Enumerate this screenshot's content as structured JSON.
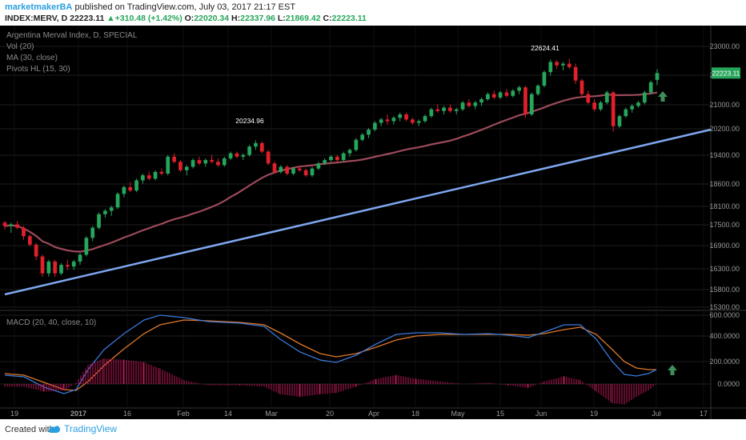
{
  "header": {
    "author": "marketmakerBA",
    "published": "published on TradingView.com, July 03, 2017 21:17 EST",
    "symbol": "INDEX:MERV, D",
    "last": "22223.11",
    "change_arrow": "▲",
    "change": "+310.48 (+1.42%)",
    "open_label": "O:",
    "open": "22020.34",
    "high_label": "H:",
    "high": "22337.96",
    "low_label": "L:",
    "low": "21869.42",
    "close_label": "C:",
    "close": "22223.11"
  },
  "legend": {
    "title": "Argentina Merval Index, D, SPECIAL",
    "vol": "Vol (20)",
    "ma": "MA (30, close)",
    "pivots": "Pivots HL (15, 30)",
    "macd": "MACD (20, 40, close, 10)"
  },
  "footer": {
    "created": "Created with",
    "brand": "TradingView"
  },
  "colors": {
    "background": "#000000",
    "up": "#26a65b",
    "down": "#e0202a",
    "ma": "#9c4a5a",
    "trendline": "#7ea7f0",
    "macd": "#3a78d8",
    "signal": "#e0782a",
    "histogram": "#c0185a",
    "arrow": "#3f8f5a",
    "grid": "#1e1e1e"
  },
  "chart_data": [
    {
      "type": "candlestick",
      "title": "Argentina Merval Index, D, SPECIAL",
      "y_ticks": [
        "23000.00",
        "22200.00",
        "21000.00",
        "20200.00",
        "19400.00",
        "18600.00",
        "18100.00",
        "17500.00",
        "16900.00",
        "16300.00",
        "15800.00",
        "15300.00"
      ],
      "current_price": "22223.11",
      "x_ticks": [
        "19",
        "2017",
        "16",
        "Feb",
        "14",
        "Mar",
        "20",
        "Apr",
        "18",
        "May",
        "15",
        "Jun",
        "19",
        "Jul",
        "17"
      ],
      "annotations": [
        "20234.96",
        "22624.41"
      ],
      "ylim": [
        15300,
        23200
      ],
      "candles": [
        [
          17800,
          17850,
          17600,
          17700
        ],
        [
          17700,
          17800,
          17500,
          17750
        ],
        [
          17750,
          17850,
          17600,
          17650
        ],
        [
          17650,
          17700,
          17300,
          17400
        ],
        [
          17400,
          17450,
          17100,
          17150
        ],
        [
          17150,
          17200,
          16700,
          16800
        ],
        [
          16800,
          16850,
          16200,
          16300
        ],
        [
          16300,
          16700,
          16200,
          16650
        ],
        [
          16650,
          16700,
          16200,
          16300
        ],
        [
          16300,
          16600,
          16250,
          16550
        ],
        [
          16550,
          16700,
          16400,
          16500
        ],
        [
          16500,
          16700,
          16400,
          16650
        ],
        [
          16650,
          16900,
          16550,
          16850
        ],
        [
          16850,
          17400,
          16800,
          17350
        ],
        [
          17350,
          17700,
          17250,
          17650
        ],
        [
          17650,
          18100,
          17600,
          18050
        ],
        [
          18050,
          18200,
          17950,
          18150
        ],
        [
          18150,
          18300,
          18000,
          18250
        ],
        [
          18250,
          18700,
          18200,
          18650
        ],
        [
          18650,
          18900,
          18550,
          18850
        ],
        [
          18850,
          19000,
          18700,
          18750
        ],
        [
          18750,
          19100,
          18700,
          19050
        ],
        [
          19050,
          19250,
          18950,
          19200
        ],
        [
          19200,
          19300,
          19050,
          19100
        ],
        [
          19100,
          19350,
          19050,
          19300
        ],
        [
          19300,
          19400,
          19200,
          19250
        ],
        [
          19250,
          19800,
          19200,
          19750
        ],
        [
          19750,
          19850,
          19550,
          19600
        ],
        [
          19600,
          19650,
          19300,
          19350
        ],
        [
          19350,
          19500,
          19200,
          19450
        ],
        [
          19450,
          19700,
          19400,
          19650
        ],
        [
          19650,
          19750,
          19500,
          19550
        ],
        [
          19550,
          19700,
          19450,
          19650
        ],
        [
          19650,
          19800,
          19550,
          19600
        ],
        [
          19600,
          19700,
          19450,
          19500
        ],
        [
          19500,
          19750,
          19450,
          19700
        ],
        [
          19700,
          19900,
          19650,
          19850
        ],
        [
          19850,
          19900,
          19700,
          19750
        ],
        [
          19750,
          19850,
          19650,
          19800
        ],
        [
          19800,
          20100,
          19750,
          20050
        ],
        [
          20050,
          20235,
          19950,
          20150
        ],
        [
          20150,
          20200,
          19850,
          19900
        ],
        [
          19900,
          19950,
          19500,
          19550
        ],
        [
          19550,
          19600,
          19250,
          19300
        ],
        [
          19300,
          19500,
          19250,
          19450
        ],
        [
          19450,
          19500,
          19200,
          19250
        ],
        [
          19250,
          19450,
          19200,
          19400
        ],
        [
          19400,
          19450,
          19300,
          19350
        ],
        [
          19350,
          19400,
          19150,
          19200
        ],
        [
          19200,
          19450,
          19150,
          19400
        ],
        [
          19400,
          19600,
          19350,
          19550
        ],
        [
          19550,
          19700,
          19500,
          19650
        ],
        [
          19650,
          19800,
          19600,
          19750
        ],
        [
          19750,
          19800,
          19600,
          19650
        ],
        [
          19650,
          19900,
          19600,
          19850
        ],
        [
          19850,
          20000,
          19750,
          19950
        ],
        [
          19950,
          20300,
          19900,
          20250
        ],
        [
          20250,
          20450,
          20200,
          20400
        ],
        [
          20400,
          20600,
          20300,
          20550
        ],
        [
          20550,
          20800,
          20500,
          20750
        ],
        [
          20750,
          20900,
          20650,
          20850
        ],
        [
          20850,
          21000,
          20700,
          20800
        ],
        [
          20800,
          20950,
          20700,
          20900
        ],
        [
          20900,
          21050,
          20800,
          21000
        ],
        [
          21000,
          21050,
          20800,
          20850
        ],
        [
          20850,
          20900,
          20700,
          20750
        ],
        [
          20750,
          20850,
          20650,
          20800
        ],
        [
          20800,
          21000,
          20750,
          20950
        ],
        [
          20950,
          21200,
          20900,
          21150
        ],
        [
          21150,
          21300,
          21050,
          21100
        ],
        [
          21100,
          21250,
          21000,
          21200
        ],
        [
          21200,
          21300,
          21050,
          21100
        ],
        [
          21100,
          21200,
          21000,
          21150
        ],
        [
          21150,
          21400,
          21100,
          21350
        ],
        [
          21350,
          21450,
          21200,
          21250
        ],
        [
          21250,
          21400,
          21150,
          21350
        ],
        [
          21350,
          21500,
          21250,
          21450
        ],
        [
          21450,
          21650,
          21400,
          21600
        ],
        [
          21600,
          21700,
          21450,
          21500
        ],
        [
          21500,
          21700,
          21450,
          21650
        ],
        [
          21650,
          21750,
          21500,
          21550
        ],
        [
          21550,
          21750,
          21500,
          21700
        ],
        [
          21700,
          21850,
          21600,
          21800
        ],
        [
          21800,
          21850,
          20900,
          21000
        ],
        [
          21000,
          21650,
          20950,
          21600
        ],
        [
          21600,
          21900,
          21550,
          21850
        ],
        [
          21850,
          22300,
          21800,
          22250
        ],
        [
          22250,
          22624,
          22150,
          22550
        ],
        [
          22550,
          22600,
          22350,
          22450
        ],
        [
          22450,
          22550,
          22300,
          22500
        ],
        [
          22500,
          22650,
          22350,
          22400
        ],
        [
          22400,
          22500,
          21900,
          22000
        ],
        [
          22000,
          22050,
          21500,
          21600
        ],
        [
          21600,
          21700,
          21300,
          21350
        ],
        [
          21350,
          21450,
          21100,
          21150
        ],
        [
          21150,
          21400,
          21100,
          21350
        ],
        [
          21350,
          21700,
          21300,
          21650
        ],
        [
          21650,
          21700,
          20500,
          20650
        ],
        [
          20650,
          21000,
          20600,
          20950
        ],
        [
          20950,
          21200,
          20900,
          21150
        ],
        [
          21150,
          21300,
          21050,
          21250
        ],
        [
          21250,
          21400,
          21200,
          21350
        ],
        [
          21350,
          21700,
          21300,
          21650
        ],
        [
          21650,
          22000,
          21600,
          21950
        ],
        [
          22020,
          22338,
          21869,
          22223
        ]
      ]
    },
    {
      "type": "line",
      "title": "MACD (20, 40, close, 10)",
      "y_ticks": [
        "600.0000",
        "400.0000",
        "200.0000",
        "0.0000"
      ],
      "ylim": [
        -300,
        650
      ]
    }
  ]
}
